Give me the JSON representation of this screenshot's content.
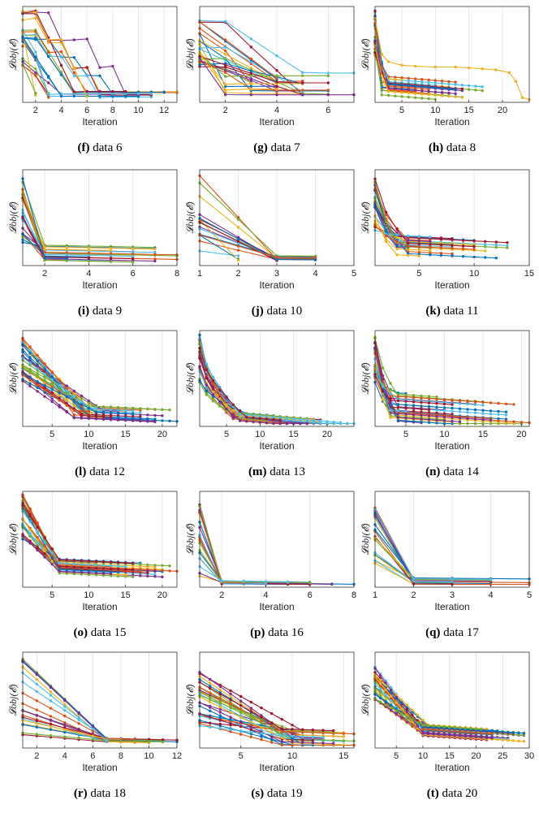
{
  "figure": {
    "y_label": "𝓛obj(𝓔)",
    "x_label": "Iteration"
  },
  "series_colors": [
    "#0072BD",
    "#D95319",
    "#EDB120",
    "#7E2F8E",
    "#77AC30",
    "#4DBEEE",
    "#A2142F"
  ],
  "chart_data": [
    {
      "id": "f",
      "caption_letter": "(f)",
      "caption_text": "data 6",
      "type": "line",
      "xlim": [
        1,
        13
      ],
      "xticks": [
        2,
        4,
        6,
        8,
        10,
        12
      ],
      "xlabel": "Iteration",
      "ylabel": "𝓛obj(𝓔)",
      "grid": true,
      "n_series": 24,
      "end_range": [
        1,
        13
      ],
      "start_level": [
        0.35,
        0.98
      ],
      "drop_at": [
        3,
        10
      ],
      "final_level": [
        0.02,
        0.1
      ],
      "shape": "stairs"
    },
    {
      "id": "g",
      "caption_letter": "(g)",
      "caption_text": "data 7",
      "type": "line",
      "xlim": [
        1,
        7
      ],
      "xticks": [
        2,
        4,
        6
      ],
      "xlabel": "Iteration",
      "ylabel": "𝓛obj(𝓔)",
      "grid": true,
      "n_series": 24,
      "end_range": [
        3,
        7
      ],
      "start_level": [
        0.35,
        0.92
      ],
      "drop_at": [
        2,
        6
      ],
      "final_level": [
        0.03,
        0.3
      ],
      "shape": "stairs"
    },
    {
      "id": "h",
      "caption_letter": "(h)",
      "caption_text": "data 8",
      "type": "line",
      "xlim": [
        1,
        24
      ],
      "xticks": [
        5,
        10,
        15,
        20
      ],
      "xlabel": "Iteration",
      "ylabel": "𝓛obj(𝓔)",
      "grid": true,
      "n_series": 24,
      "end_range": [
        5,
        17
      ],
      "start_level": [
        0.45,
        1.0
      ],
      "drop_at": [
        2,
        3
      ],
      "final_level": [
        0.05,
        0.3
      ],
      "shape": "decay",
      "special": {
        "color_index": 2,
        "x": [
          1,
          2,
          3,
          5,
          7,
          10,
          13,
          15,
          17,
          19,
          21,
          22,
          23,
          24
        ],
        "y": [
          0.9,
          0.5,
          0.42,
          0.38,
          0.37,
          0.36,
          0.36,
          0.35,
          0.34,
          0.33,
          0.3,
          0.2,
          0.02,
          0.0
        ]
      }
    },
    {
      "id": "i",
      "caption_letter": "(i)",
      "caption_text": "data 9",
      "type": "line",
      "xlim": [
        1,
        8
      ],
      "xticks": [
        2,
        4,
        6,
        8
      ],
      "xlabel": "Iteration",
      "ylabel": "𝓛obj(𝓔)",
      "grid": true,
      "n_series": 22,
      "end_range": [
        2,
        8
      ],
      "start_level": [
        0.2,
        0.95
      ],
      "drop_at": [
        2,
        2
      ],
      "final_level": [
        0.02,
        0.2
      ],
      "shape": "drop"
    },
    {
      "id": "j",
      "caption_letter": "(j)",
      "caption_text": "data 10",
      "type": "line",
      "xlim": [
        1,
        5
      ],
      "xticks": [
        1,
        2,
        3,
        4,
        5
      ],
      "xlabel": "Iteration",
      "ylabel": "𝓛obj(𝓔)",
      "grid": true,
      "n_series": 16,
      "end_range": [
        2,
        5
      ],
      "start_level": [
        0.05,
        1.0
      ],
      "drop_at": [
        3,
        3
      ],
      "final_level": [
        0.02,
        0.08
      ],
      "shape": "linear"
    },
    {
      "id": "k",
      "caption_letter": "(k)",
      "caption_text": "data 11",
      "type": "line",
      "xlim": [
        1,
        15
      ],
      "xticks": [
        5,
        10,
        15
      ],
      "xlabel": "Iteration",
      "ylabel": "𝓛obj(𝓔)",
      "grid": true,
      "n_series": 24,
      "end_range": [
        4,
        14
      ],
      "start_level": [
        0.3,
        0.95
      ],
      "drop_at": [
        3,
        4
      ],
      "final_level": [
        0.05,
        0.3
      ],
      "shape": "decay"
    },
    {
      "id": "l",
      "caption_letter": "(l)",
      "caption_text": "data 12",
      "type": "line",
      "xlim": [
        1,
        22
      ],
      "xticks": [
        5,
        10,
        15,
        20
      ],
      "xlabel": "Iteration",
      "ylabel": "𝓛obj(𝓔)",
      "grid": true,
      "n_series": 30,
      "end_range": [
        10,
        22
      ],
      "start_level": [
        0.45,
        0.95
      ],
      "drop_at": [
        8,
        12
      ],
      "final_level": [
        0.05,
        0.2
      ],
      "shape": "linear"
    },
    {
      "id": "m",
      "caption_letter": "(m)",
      "caption_text": "data 13",
      "type": "line",
      "xlim": [
        1,
        24
      ],
      "xticks": [
        5,
        10,
        15,
        20
      ],
      "xlabel": "Iteration",
      "ylabel": "𝓛obj(𝓔)",
      "grid": true,
      "n_series": 28,
      "end_range": [
        8,
        24
      ],
      "start_level": [
        0.4,
        1.0
      ],
      "drop_at": [
        6,
        8
      ],
      "final_level": [
        0.02,
        0.12
      ],
      "shape": "decay"
    },
    {
      "id": "n",
      "caption_letter": "(n)",
      "caption_text": "data 14",
      "type": "line",
      "xlim": [
        1,
        21
      ],
      "xticks": [
        5,
        10,
        15,
        20
      ],
      "xlabel": "Iteration",
      "ylabel": "𝓛obj(𝓔)",
      "grid": true,
      "n_series": 28,
      "end_range": [
        5,
        21
      ],
      "start_level": [
        0.4,
        1.0
      ],
      "drop_at": [
        3,
        4
      ],
      "final_level": [
        0.02,
        0.35
      ],
      "shape": "decay"
    },
    {
      "id": "o",
      "caption_letter": "(o)",
      "caption_text": "data 15",
      "type": "line",
      "xlim": [
        1,
        22
      ],
      "xticks": [
        5,
        10,
        15,
        20
      ],
      "xlabel": "Iteration",
      "ylabel": "𝓛obj(𝓔)",
      "grid": true,
      "n_series": 28,
      "end_range": [
        10,
        22
      ],
      "start_level": [
        0.5,
        1.0
      ],
      "drop_at": [
        6,
        6
      ],
      "final_level": [
        0.12,
        0.28
      ],
      "shape": "linear"
    },
    {
      "id": "p",
      "caption_letter": "(p)",
      "caption_text": "data 16",
      "type": "line",
      "xlim": [
        1,
        8
      ],
      "xticks": [
        2,
        4,
        6,
        8
      ],
      "xlabel": "Iteration",
      "ylabel": "𝓛obj(𝓔)",
      "grid": true,
      "n_series": 20,
      "end_range": [
        2,
        8
      ],
      "start_level": [
        0.05,
        1.0
      ],
      "drop_at": [
        2,
        2
      ],
      "final_level": [
        0.0,
        0.04
      ],
      "shape": "linear"
    },
    {
      "id": "q",
      "caption_letter": "(q)",
      "caption_text": "data 17",
      "type": "line",
      "xlim": [
        1,
        5
      ],
      "xticks": [
        1,
        2,
        3,
        4,
        5
      ],
      "xlabel": "Iteration",
      "ylabel": "𝓛obj(𝓔)",
      "grid": true,
      "n_series": 20,
      "end_range": [
        2,
        5
      ],
      "start_level": [
        0.2,
        0.85
      ],
      "drop_at": [
        2,
        2
      ],
      "final_level": [
        0.0,
        0.08
      ],
      "shape": "linear"
    },
    {
      "id": "r",
      "caption_letter": "(r)",
      "caption_text": "data 18",
      "type": "line",
      "xlim": [
        1,
        12
      ],
      "xticks": [
        2,
        4,
        6,
        8,
        10,
        12
      ],
      "xlabel": "Iteration",
      "ylabel": "𝓛obj(𝓔)",
      "grid": true,
      "n_series": 20,
      "end_range": [
        7,
        12
      ],
      "start_level": [
        0.1,
        1.0
      ],
      "drop_at": [
        7,
        7
      ],
      "final_level": [
        0.02,
        0.08
      ],
      "shape": "linear"
    },
    {
      "id": "s",
      "caption_letter": "(s)",
      "caption_text": "data 19",
      "type": "line",
      "xlim": [
        1,
        16
      ],
      "xticks": [
        5,
        10,
        15
      ],
      "xlabel": "Iteration",
      "ylabel": "𝓛obj(𝓔)",
      "grid": true,
      "n_series": 28,
      "end_range": [
        10,
        16
      ],
      "start_level": [
        0.2,
        0.82
      ],
      "drop_at": [
        9,
        11
      ],
      "final_level": [
        0.0,
        0.2
      ],
      "shape": "linear"
    },
    {
      "id": "t",
      "caption_letter": "(t)",
      "caption_text": "data 20",
      "type": "line",
      "xlim": [
        1,
        30
      ],
      "xticks": [
        5,
        10,
        15,
        20,
        25,
        30
      ],
      "xlabel": "Iteration",
      "ylabel": "𝓛obj(𝓔)",
      "grid": true,
      "n_series": 26,
      "end_range": [
        18,
        30
      ],
      "start_level": [
        0.5,
        0.95
      ],
      "drop_at": [
        9,
        11
      ],
      "final_level": [
        0.1,
        0.25
      ],
      "shape": "linear"
    }
  ]
}
